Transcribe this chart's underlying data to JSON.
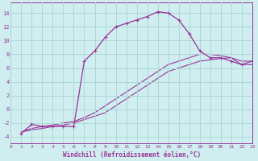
{
  "xlabel": "Windchill (Refroidissement éolien,°C)",
  "background_color": "#d0eef0",
  "grid_color": "#aad8d8",
  "line_color": "#993399",
  "x_ticks": [
    0,
    1,
    2,
    3,
    4,
    5,
    6,
    7,
    8,
    9,
    10,
    11,
    12,
    13,
    14,
    15,
    16,
    17,
    18,
    19,
    20,
    21,
    22,
    23
  ],
  "y_ticks": [
    -4,
    -2,
    0,
    2,
    4,
    6,
    8,
    10,
    12,
    14
  ],
  "xlim": [
    0,
    23
  ],
  "ylim": [
    -5,
    15.5
  ],
  "curve1_x": [
    1,
    2,
    3,
    4,
    5,
    6,
    7,
    8,
    9,
    10,
    11,
    12,
    13,
    14,
    15,
    16,
    17,
    18,
    19,
    20,
    21,
    22,
    23
  ],
  "curve1_y": [
    -3.5,
    -2.2,
    -2.5,
    -2.5,
    -2.5,
    -2.5,
    7.0,
    8.5,
    10.5,
    12.0,
    12.5,
    13.0,
    13.5,
    14.2,
    14.0,
    13.0,
    11.0,
    8.5,
    7.5,
    7.5,
    7.0,
    6.5,
    7.0
  ],
  "curve2_x": [
    1,
    2,
    3,
    4,
    5,
    6,
    7,
    8,
    9,
    10,
    11,
    12,
    13,
    14,
    15,
    16,
    17,
    18,
    19,
    20,
    21,
    22,
    23
  ],
  "curve2_y": [
    -3.3,
    -3.0,
    -2.8,
    -2.5,
    -2.3,
    -2.0,
    -1.5,
    -1.0,
    -0.5,
    0.5,
    1.5,
    2.5,
    3.5,
    4.5,
    5.5,
    6.0,
    6.5,
    7.0,
    7.2,
    7.4,
    7.5,
    7.0,
    7.0
  ],
  "curve3_x": [
    1,
    2,
    3,
    4,
    5,
    6,
    7,
    8,
    9,
    10,
    11,
    12,
    13,
    14,
    15,
    16,
    17,
    18,
    19,
    20,
    21,
    22,
    23
  ],
  "curve3_y": [
    -3.3,
    -2.8,
    -2.5,
    -2.3,
    -2.0,
    -1.8,
    -1.2,
    -0.5,
    0.5,
    1.5,
    2.5,
    3.5,
    4.5,
    5.5,
    6.5,
    7.0,
    7.5,
    8.0,
    8.0,
    7.8,
    7.5,
    6.5,
    6.5
  ]
}
